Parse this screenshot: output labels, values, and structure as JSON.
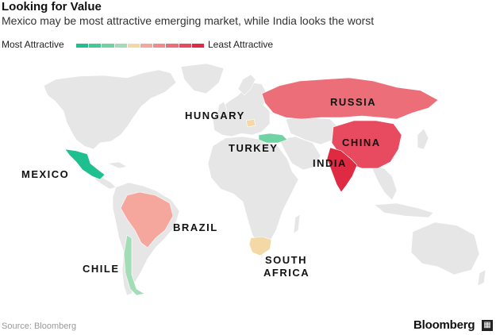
{
  "title": "Looking for Value",
  "subtitle": "Mexico may be most attractive emerging market, while India looks the worst",
  "legend": {
    "left_label": "Most Attractive",
    "right_label": "Least Attractive",
    "colors": [
      "#1fbf8f",
      "#45c996",
      "#6fd3a4",
      "#a3ddb8",
      "#f4d9a6",
      "#f6a79d",
      "#f08a8c",
      "#ec6e78",
      "#e84a5f",
      "#de2a43"
    ]
  },
  "countries": [
    {
      "name": "MEXICO",
      "color": "#1fbf8f",
      "rank": 1
    },
    {
      "name": "CHILE",
      "color": "#a3ddb8",
      "rank": 2
    },
    {
      "name": "TURKEY",
      "color": "#6fd3a4",
      "rank": 3
    },
    {
      "name": "HUNGARY",
      "color": "#f4d9a6",
      "rank": 4
    },
    {
      "name": "SOUTH AFRICA",
      "color": "#f4d9a6",
      "rank": 5
    },
    {
      "name": "BRAZIL",
      "color": "#f6a79d",
      "rank": 6
    },
    {
      "name": "RUSSIA",
      "color": "#ec6e78",
      "rank": 7
    },
    {
      "name": "CHINA",
      "color": "#e84a5f",
      "rank": 8
    },
    {
      "name": "INDIA",
      "color": "#de2a43",
      "rank": 9
    }
  ],
  "labels": {
    "mexico": "MEXICO",
    "chile": "CHILE",
    "turkey": "TURKEY",
    "hungary": "HUNGARY",
    "south_africa_1": "SOUTH",
    "south_africa_2": "AFRICA",
    "brazil": "BRAZIL",
    "russia": "RUSSIA",
    "china": "CHINA",
    "india": "INDIA"
  },
  "land_color": "#e6e6e6",
  "source": "Source: Bloomberg",
  "brand": "Bloomberg"
}
